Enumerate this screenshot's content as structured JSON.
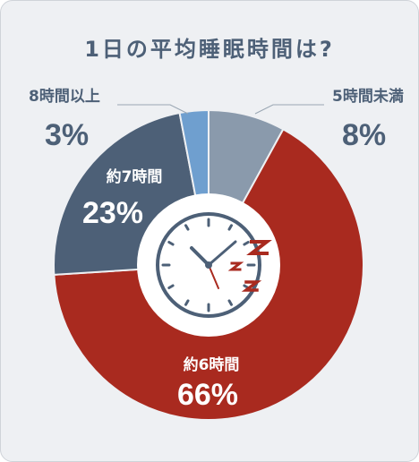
{
  "chart_data": {
    "type": "pie",
    "title": "1日の平均睡眠時間は?",
    "categories": [
      "5時間未満",
      "約6時間",
      "約7時間",
      "8時間以上"
    ],
    "values": [
      8,
      66,
      23,
      3
    ],
    "value_labels": [
      "8%",
      "66%",
      "23%",
      "3%"
    ],
    "colors": [
      "#8a9aac",
      "#a92a1f",
      "#4d6077",
      "#6f9fcf"
    ],
    "donut": true,
    "center_icon": "clock-icon",
    "center_accent": "zzz-icon"
  }
}
